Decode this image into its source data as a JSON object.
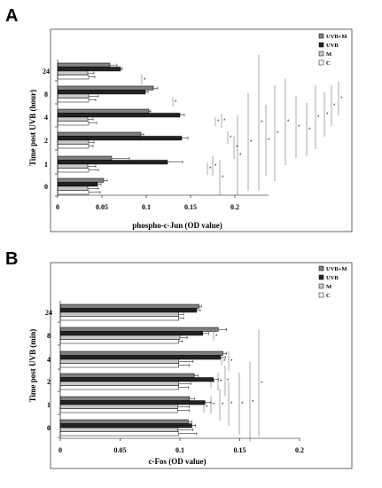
{
  "figure": {
    "panels": [
      {
        "letter": "A"
      },
      {
        "letter": "B"
      }
    ]
  },
  "chart_data": [
    {
      "type": "bar",
      "orientation": "horizontal",
      "panel": "A",
      "xlabel": "phospho-c-Jun (OD value)",
      "ylabel": "Time post UVB (hour)",
      "categories": [
        "0",
        "1",
        "2",
        "4",
        "8",
        "24"
      ],
      "xlim": [
        0,
        0.25
      ],
      "xticks": [
        "0",
        "0.05",
        "0.1",
        "0.15",
        "0.2"
      ],
      "xtick_values": [
        0,
        0.05,
        0.1,
        0.15,
        0.2
      ],
      "grid": false,
      "legend": "top-right",
      "series": [
        {
          "name": "UVB+M",
          "color": "#7f7f7f",
          "values": [
            0.052,
            0.061,
            0.094,
            0.103,
            0.108,
            0.059
          ],
          "errors": [
            0.004,
            0.02,
            0.003,
            0.002,
            0.005,
            0.008
          ]
        },
        {
          "name": "UVB",
          "color": "#222222",
          "values": [
            0.045,
            0.124,
            0.14,
            0.138,
            0.099,
            0.071
          ],
          "errors": [
            0.004,
            0.017,
            0.007,
            0.005,
            0.003,
            0.002
          ]
        },
        {
          "name": "M",
          "color": "#c8c8c8",
          "values": [
            0.034,
            0.034,
            0.035,
            0.034,
            0.035,
            0.034
          ],
          "errors": [
            0.012,
            0.009,
            0.006,
            0.006,
            0.011,
            0.007
          ]
        },
        {
          "name": "C",
          "color": "#ffffff",
          "values": [
            0.035,
            0.035,
            0.035,
            0.035,
            0.035,
            0.035
          ],
          "errors": [
            0.013,
            0.011,
            0.005,
            0.009,
            0.008,
            0.007
          ]
        }
      ]
    },
    {
      "type": "bar",
      "orientation": "horizontal",
      "panel": "B",
      "xlabel": "c-Fos (OD value)",
      "ylabel": "Time post UVB (min)",
      "categories": [
        "0",
        "1",
        "2",
        "4",
        "8",
        "24"
      ],
      "xlim": [
        0,
        0.2
      ],
      "xticks": [
        "0",
        "0.05",
        "0.1",
        "0.15",
        "0.2"
      ],
      "xtick_values": [
        0,
        0.05,
        0.1,
        0.15,
        0.2
      ],
      "grid": false,
      "legend": "top-right",
      "series": [
        {
          "name": "UVB+M",
          "color": "#7f7f7f",
          "values": [
            0.107,
            0.108,
            0.112,
            0.136,
            0.132,
            0.116
          ],
          "errors": [
            0.003,
            0.004,
            0.003,
            0.003,
            0.007,
            0.002
          ]
        },
        {
          "name": "UVB",
          "color": "#222222",
          "values": [
            0.11,
            0.121,
            0.128,
            0.134,
            0.119,
            0.114
          ],
          "errors": [
            0.003,
            0.005,
            0.004,
            0.004,
            0.005,
            0.003
          ]
        },
        {
          "name": "M",
          "color": "#c8c8c8",
          "values": [
            0.098,
            0.098,
            0.099,
            0.099,
            0.1,
            0.099
          ],
          "errors": [
            0.013,
            0.01,
            0.01,
            0.012,
            0.006,
            0.004
          ]
        },
        {
          "name": "C",
          "color": "#ffffff",
          "values": [
            0.099,
            0.098,
            0.099,
            0.099,
            0.099,
            0.099
          ],
          "errors": [
            0.015,
            0.01,
            0.008,
            0.009,
            0.003,
            0.004
          ]
        }
      ]
    }
  ]
}
